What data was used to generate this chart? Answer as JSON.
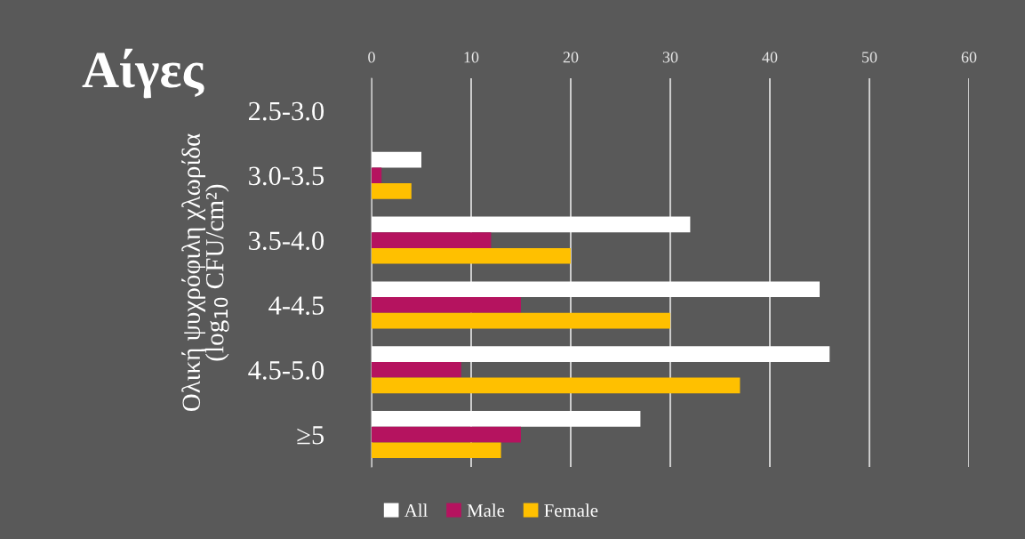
{
  "chart_data": {
    "type": "bar",
    "orientation": "horizontal",
    "title": "Αίγες",
    "ylabel": "Ολική ψυχρόφιλη χλωρίδα\n(log$_{10}$ CFU/cm²)",
    "categories": [
      "2.5-3.0",
      "3.0-3.5",
      "3.5-4.0",
      "4-4.5",
      "4.5-5.0",
      "≥5"
    ],
    "series": [
      {
        "name": "All",
        "color": "#ffffff",
        "values": [
          0,
          5,
          32,
          45,
          46,
          27
        ]
      },
      {
        "name": "Male",
        "color": "#b5135f",
        "values": [
          0,
          1,
          12,
          15,
          9,
          15
        ]
      },
      {
        "name": "Female",
        "color": "#ffc000",
        "values": [
          0,
          4,
          20,
          30,
          37,
          13
        ]
      }
    ],
    "xlim": [
      0,
      60
    ],
    "xticks": [
      0,
      10,
      20,
      30,
      40,
      50,
      60
    ],
    "grid": "x",
    "legend": "bottom"
  }
}
